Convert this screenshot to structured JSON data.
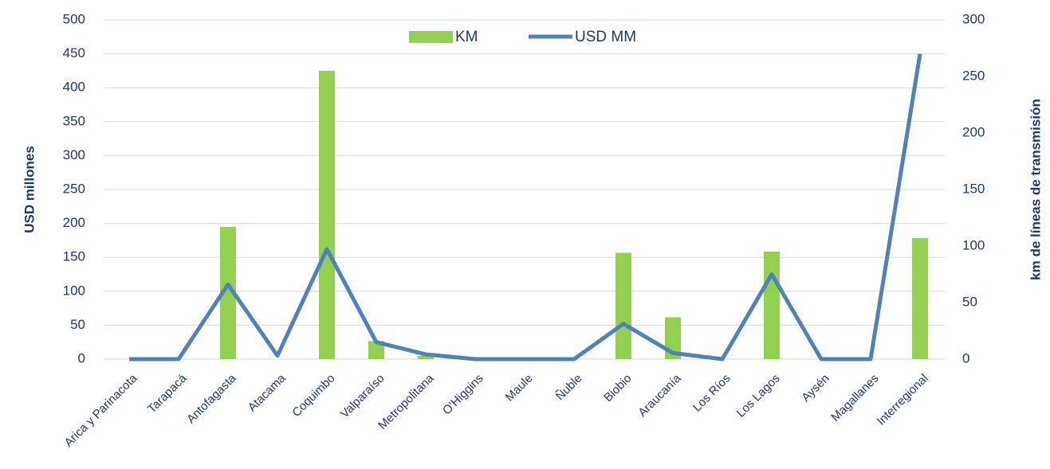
{
  "chart_data": {
    "type": "bar-line",
    "ylabel": "USD millones",
    "y2label": "km de líneas de transmisión",
    "categories": [
      "Arica y Parinacota",
      "Tarapacá",
      "Antofagasta",
      "Atacama",
      "Coquimbo",
      "Valparaíso",
      "Metropolitana",
      "O'Higgins",
      "Maule",
      "Ñuble",
      "Biobio",
      "Araucanía",
      "Los Ríos",
      "Los Lagos",
      "Aysén",
      "Magallanes",
      "Interregional"
    ],
    "series": [
      {
        "name": "KM",
        "kind": "bar",
        "color": "#92d050",
        "axis": "y2",
        "values": [
          0,
          0,
          117,
          0,
          255,
          16,
          3,
          0,
          0,
          0,
          94,
          37,
          0,
          95,
          0,
          0,
          107
        ]
      },
      {
        "name": "USD MM",
        "kind": "line",
        "color": "#4f81bd",
        "axis": "y",
        "values": [
          0,
          0,
          110,
          5,
          162,
          25,
          7,
          0,
          0,
          0,
          52,
          9,
          0,
          125,
          0,
          0,
          450
        ]
      }
    ],
    "ylim": [
      0,
      500
    ],
    "yticks": [
      0,
      50,
      100,
      150,
      200,
      250,
      300,
      350,
      400,
      450,
      500
    ],
    "y2lim": [
      0,
      300
    ],
    "y2ticks": [
      0,
      50,
      100,
      150,
      200,
      250,
      300
    ],
    "grid": true,
    "legend": "top"
  }
}
